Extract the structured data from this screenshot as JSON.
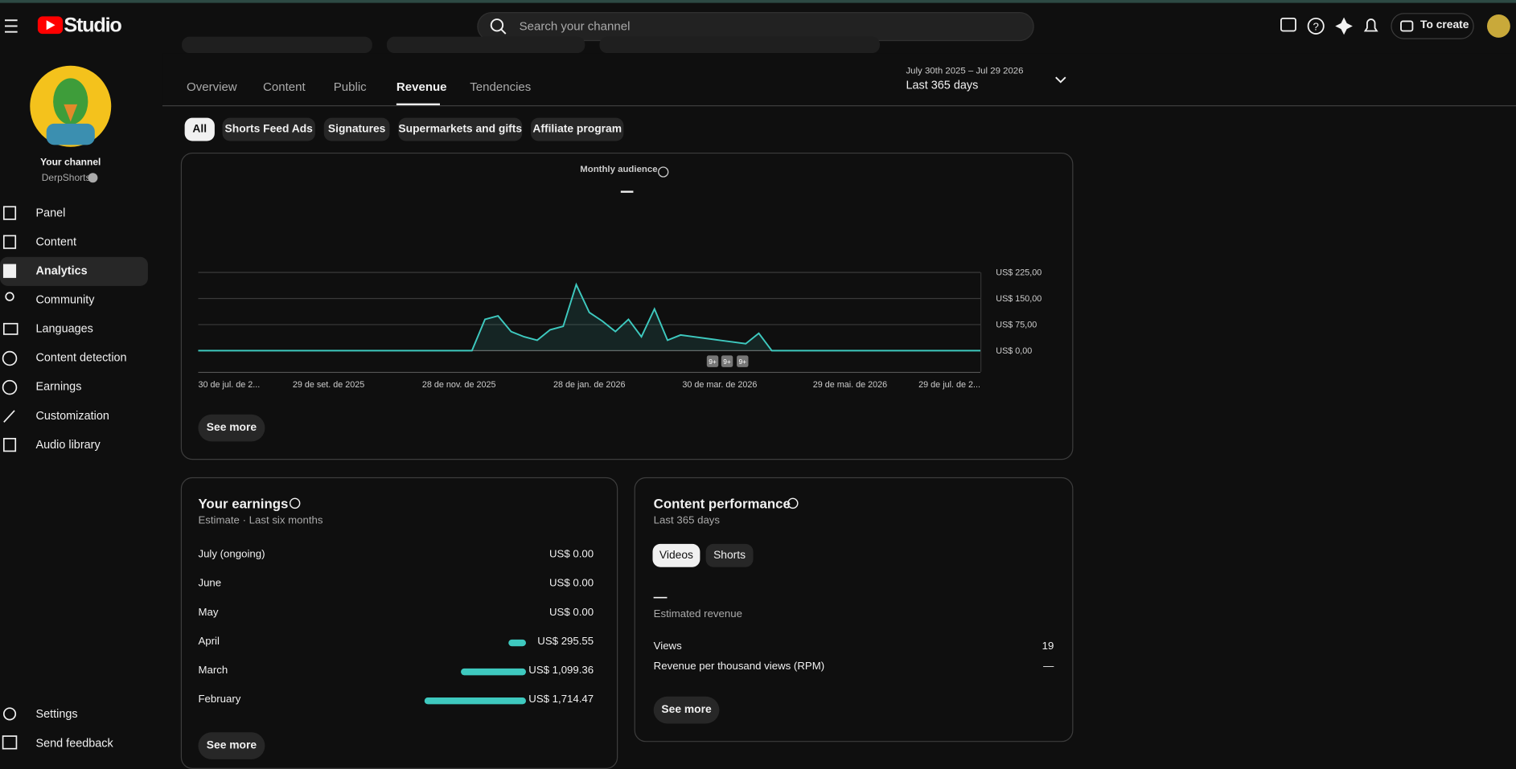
{
  "header": {
    "logo": "Studio",
    "search_placeholder": "Search your channel",
    "create_button": "To create"
  },
  "sidebar": {
    "channel_label": "Your channel",
    "channel_name": "DerpShorts",
    "nav": [
      "Panel",
      "Content",
      "Analytics",
      "Community",
      "Languages",
      "Content detection",
      "Earnings",
      "Customization",
      "Audio library"
    ],
    "footer_nav": [
      "Settings",
      "Send feedback"
    ]
  },
  "tabs": [
    "Overview",
    "Content",
    "Public",
    "Revenue",
    "Tendencies"
  ],
  "date_range": {
    "range": "July 30th 2025 – Jul 29 2026",
    "label": "Last 365 days"
  },
  "filters": [
    "All",
    "Shorts Feed Ads",
    "Signatures",
    "Supermarkets and gifts",
    "Affiliate program"
  ],
  "chart_data": {
    "type": "line",
    "title": "Monthly audience",
    "categories": [
      "30 de jul. de 2...",
      null,
      null,
      null,
      null,
      null,
      null,
      null,
      null,
      null,
      "29 de set. de 2025",
      null,
      null,
      null,
      null,
      null,
      null,
      null,
      null,
      null,
      "28 de nov. de 2025",
      null,
      null,
      null,
      null,
      null,
      null,
      null,
      null,
      null,
      "28 de jan. de 2026",
      null,
      null,
      null,
      null,
      null,
      null,
      null,
      null,
      null,
      "30 de mar. de 2026",
      null,
      null,
      null,
      null,
      null,
      null,
      null,
      null,
      null,
      "29 de mai. de 2026",
      null,
      null,
      null,
      null,
      null,
      null,
      null,
      null,
      null,
      "29 de jul. de 2..."
    ],
    "series": [
      {
        "color": "#3ec9bf",
        "values": [
          0,
          0,
          0,
          0,
          0,
          0,
          0,
          0,
          0,
          0,
          0,
          0,
          0,
          0,
          0,
          0,
          0,
          0,
          0,
          0,
          0,
          0,
          90,
          100,
          55,
          40,
          30,
          60,
          70,
          190,
          110,
          85,
          55,
          90,
          40,
          120,
          30,
          45,
          40,
          35,
          30,
          25,
          20,
          50,
          0,
          0,
          0,
          0,
          0,
          0,
          0,
          0,
          0,
          0,
          0,
          0,
          0,
          0,
          0,
          0,
          0
        ]
      }
    ],
    "ylim": [
      0,
      225
    ],
    "yticks": [
      {
        "value": 0,
        "label": "US$ 0,00"
      },
      {
        "value": 75,
        "label": "US$ 75,00"
      },
      {
        "value": 150,
        "label": "US$ 150,00"
      },
      {
        "value": 225,
        "label": "US$ 225,00"
      }
    ],
    "grid": true,
    "annotations": [
      "9+",
      "9+",
      "9+"
    ]
  },
  "chart_card": {
    "button": "See more"
  },
  "earnings": {
    "title": "Your earnings",
    "subtitle": "Estimate · Last six months",
    "rows": [
      {
        "label": "July (ongoing)",
        "value": 0,
        "value_label": "US$ 0.00"
      },
      {
        "label": "June",
        "value": 0,
        "value_label": "US$ 0.00"
      },
      {
        "label": "May",
        "value": 0,
        "value_label": "US$ 0.00"
      },
      {
        "label": "April",
        "value": 295.55,
        "value_label": "US$ 295.55"
      },
      {
        "label": "March",
        "value": 1099.36,
        "value_label": "US$ 1,099.36"
      },
      {
        "label": "February",
        "value": 1714.47,
        "value_label": "US$ 1,714.47"
      }
    ],
    "color": "#3ec9bf",
    "button": "See more"
  },
  "content_performance": {
    "title": "Content performance",
    "subtitle": "Last 365 days",
    "toggles": [
      "Videos",
      "Shorts"
    ],
    "revenue": "—",
    "revenue_label": "Estimated revenue",
    "metrics": [
      {
        "label": "Views",
        "value": 19
      },
      {
        "label": "Revenue per thousand views (RPM)",
        "value": "—"
      }
    ],
    "button": "See more"
  }
}
